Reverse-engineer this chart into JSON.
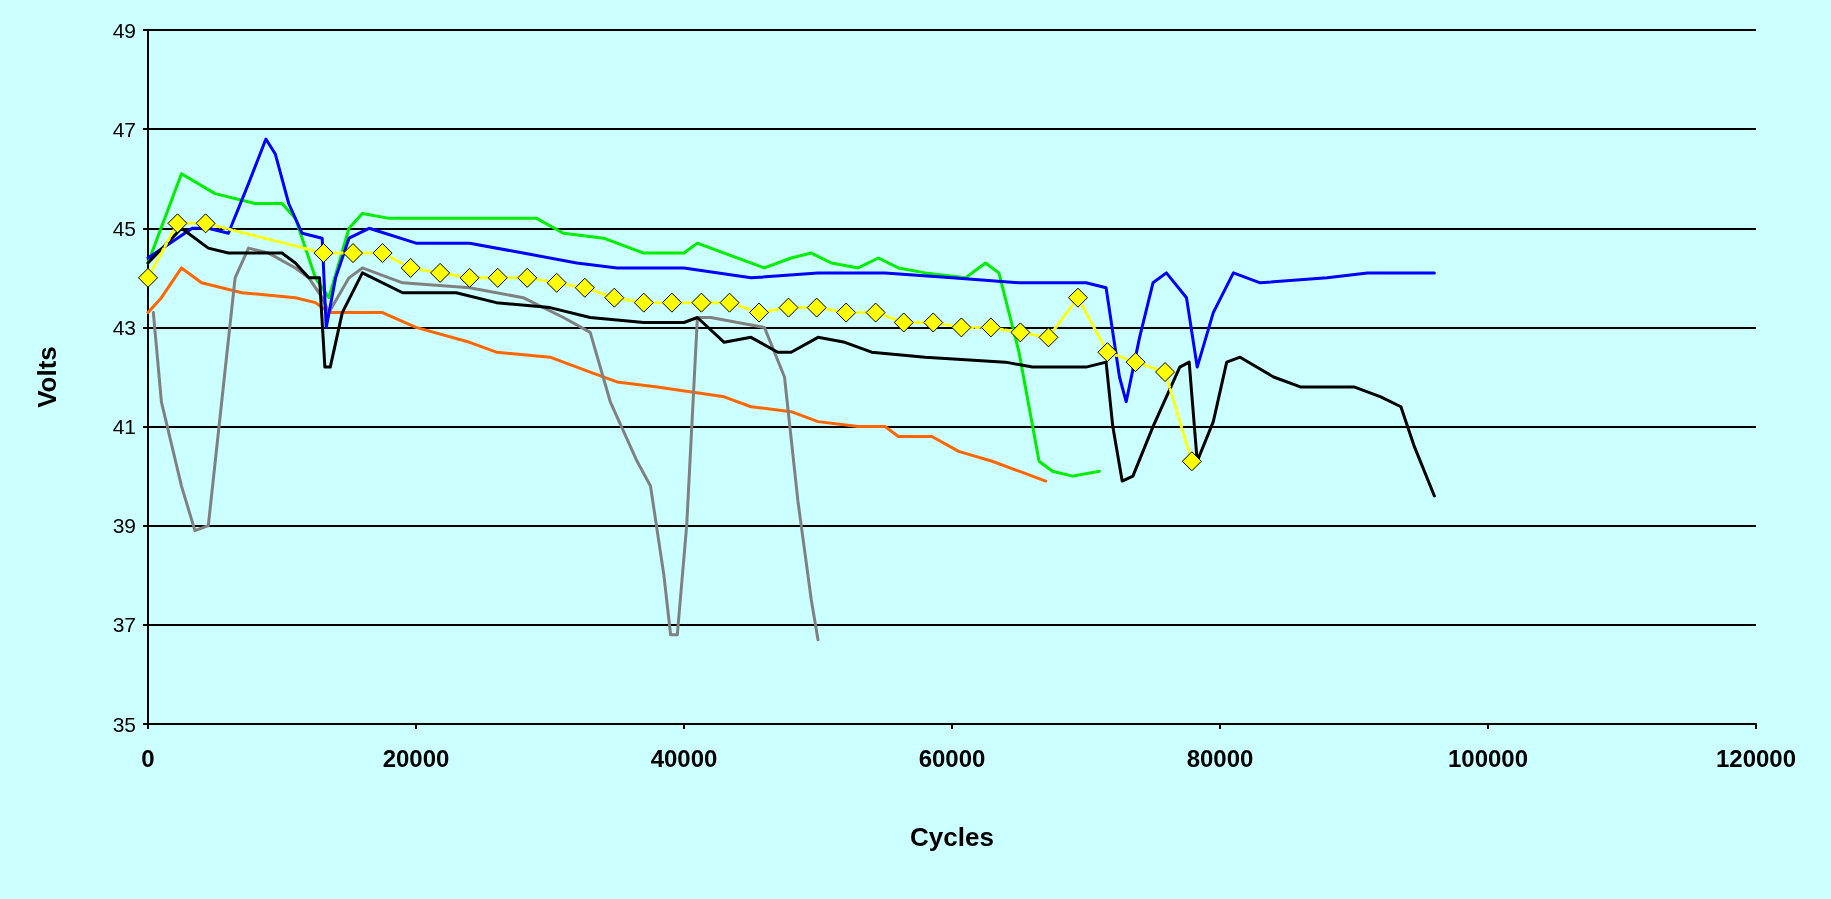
{
  "chart_data": {
    "type": "line",
    "xlabel": "Cycles",
    "ylabel": "Volts",
    "xlim": [
      0,
      120000
    ],
    "xticks": [
      0,
      20000,
      40000,
      60000,
      80000,
      100000,
      120000
    ],
    "ylim": [
      35,
      49
    ],
    "yticks": [
      35,
      37,
      39,
      41,
      43,
      45,
      47,
      49
    ],
    "grid": "y",
    "marker": "none",
    "line_style": "solid",
    "series": [
      {
        "color": "#ff6600",
        "x": [
          0,
          1000,
          2500,
          4000,
          7000,
          11000,
          12500,
          13500,
          17500,
          20000,
          24000,
          26000,
          30000,
          33000,
          35000,
          38000,
          43000,
          45000,
          48000,
          50000,
          53000,
          55000,
          56000,
          57500,
          58500,
          60500,
          63000,
          65000,
          67000
        ],
        "values": [
          43.3,
          43.6,
          44.2,
          43.9,
          43.7,
          43.6,
          43.5,
          43.3,
          43.3,
          43.0,
          42.7,
          42.5,
          42.4,
          42.1,
          41.9,
          41.8,
          41.6,
          41.4,
          41.3,
          41.1,
          41.0,
          41.0,
          40.8,
          40.8,
          40.8,
          40.5,
          40.3,
          40.1,
          39.9
        ]
      },
      {
        "color": "#808080",
        "x": [
          400,
          1000,
          2500,
          3500,
          4500,
          5500,
          6500,
          7500,
          9000,
          11000,
          12000,
          13000,
          13500,
          15000,
          16000,
          19000,
          24000,
          28000,
          31000,
          33000,
          34500,
          36500,
          37500,
          38500,
          39000,
          39500,
          40200,
          41000,
          42000,
          44000,
          46000,
          47500,
          48500,
          49500,
          50000
        ],
        "values": [
          43.3,
          41.5,
          39.8,
          38.9,
          39.0,
          41.5,
          44.0,
          44.6,
          44.5,
          44.2,
          44.0,
          43.6,
          43.3,
          44.0,
          44.2,
          43.9,
          43.8,
          43.6,
          43.2,
          42.9,
          41.5,
          40.3,
          39.8,
          38.0,
          36.8,
          36.8,
          39.0,
          43.2,
          43.2,
          43.1,
          43.0,
          42.0,
          39.5,
          37.5,
          36.7
        ]
      },
      {
        "color": "#00ee00",
        "x": [
          0,
          2500,
          5000,
          8000,
          10000,
          11000,
          12500,
          13500,
          15000,
          16000,
          18000,
          22000,
          26000,
          29000,
          31000,
          34000,
          37000,
          40000,
          41000,
          43000,
          46000,
          48000,
          49500,
          51000,
          53000,
          54500,
          56000,
          58000,
          61000,
          62500,
          63500,
          65000,
          66500,
          67500,
          69000,
          71000
        ],
        "values": [
          44.3,
          46.1,
          45.7,
          45.5,
          45.5,
          45.2,
          44.0,
          43.6,
          45.0,
          45.3,
          45.2,
          45.2,
          45.2,
          45.2,
          44.9,
          44.8,
          44.5,
          44.5,
          44.7,
          44.5,
          44.2,
          44.4,
          44.5,
          44.3,
          44.2,
          44.4,
          44.2,
          44.1,
          44.0,
          44.3,
          44.1,
          42.5,
          40.3,
          40.1,
          40.0,
          40.1
        ]
      },
      {
        "color": "#0000ff",
        "x": [
          0,
          3300,
          4500,
          6000,
          7500,
          8800,
          9500,
          10500,
          11500,
          13000,
          13300,
          14000,
          15000,
          16500,
          20000,
          24000,
          28000,
          32000,
          35000,
          40000,
          45000,
          50000,
          55000,
          60000,
          65000,
          70000,
          71500,
          72500,
          73000,
          74000,
          75000,
          76000,
          77500,
          78300,
          79500,
          81000,
          83000,
          88000,
          91000,
          96000
        ],
        "values": [
          44.4,
          45.0,
          45.0,
          44.9,
          45.9,
          46.8,
          46.5,
          45.5,
          44.9,
          44.8,
          43.0,
          44.0,
          44.8,
          45.0,
          44.7,
          44.7,
          44.5,
          44.3,
          44.2,
          44.2,
          44.0,
          44.1,
          44.1,
          44.0,
          43.9,
          43.9,
          43.8,
          42.0,
          41.5,
          42.8,
          43.9,
          44.1,
          43.6,
          42.2,
          43.3,
          44.1,
          43.9,
          44.0,
          44.1,
          44.1
        ]
      },
      {
        "color": "#000000",
        "x": [
          0,
          2500,
          4500,
          6000,
          10000,
          11000,
          12000,
          12800,
          13200,
          13600,
          14500,
          16000,
          19000,
          23000,
          26000,
          30000,
          33000,
          37000,
          40000,
          41000,
          43000,
          45000,
          47000,
          48000,
          50000,
          52000,
          54000,
          58000,
          64000,
          66000,
          70000,
          71500,
          72000,
          72700,
          73500,
          75000,
          77000,
          77700,
          78300,
          79500,
          80500,
          81500,
          84000,
          86000,
          90000,
          92000,
          93500,
          94500,
          96000
        ],
        "values": [
          44.3,
          45.0,
          44.6,
          44.5,
          44.5,
          44.3,
          44.0,
          44.0,
          42.2,
          42.2,
          43.3,
          44.1,
          43.7,
          43.7,
          43.5,
          43.4,
          43.2,
          43.1,
          43.1,
          43.2,
          42.7,
          42.8,
          42.5,
          42.5,
          42.8,
          42.7,
          42.5,
          42.4,
          42.3,
          42.2,
          42.2,
          42.3,
          41.0,
          39.9,
          40.0,
          41.0,
          42.2,
          42.3,
          40.3,
          41.1,
          42.3,
          42.4,
          42.0,
          41.8,
          41.8,
          41.6,
          41.4,
          40.6,
          39.6
        ]
      },
      {
        "color": "#ffff00",
        "marker": "diamond",
        "line_style": "dotted",
        "x": [
          0,
          2200,
          4300,
          13100,
          15300,
          17500,
          19600,
          21800,
          24000,
          26100,
          28300,
          30500,
          32600,
          34800,
          37000,
          39100,
          41300,
          43400,
          45600,
          47800,
          49900,
          52100,
          54300,
          56400,
          58600,
          60700,
          62900,
          65100,
          67200,
          69400,
          71600,
          73700,
          75900,
          77900
        ],
        "values": [
          44.0,
          45.1,
          45.1,
          44.5,
          44.5,
          44.5,
          44.2,
          44.1,
          44.0,
          44.0,
          44.0,
          43.9,
          43.8,
          43.6,
          43.5,
          43.5,
          43.5,
          43.5,
          43.3,
          43.4,
          43.4,
          43.3,
          43.3,
          43.1,
          43.1,
          43.0,
          43.0,
          42.9,
          42.8,
          43.6,
          42.5,
          42.3,
          42.1,
          40.3
        ]
      }
    ]
  }
}
